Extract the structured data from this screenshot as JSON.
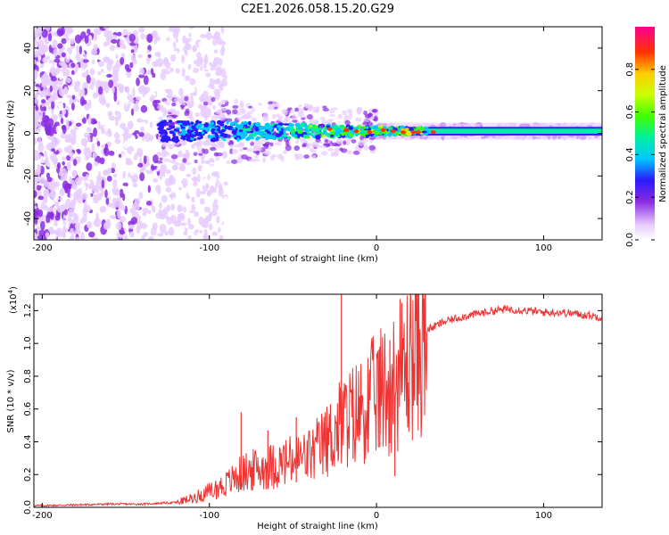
{
  "title": "C2E1.2026.058.15.20.G29",
  "chart_data": [
    {
      "type": "heatmap",
      "name": "spectrogram",
      "xlabel": "Height of straight line (km)",
      "ylabel": "Frequency (Hz)",
      "xlim": [
        -205,
        135
      ],
      "ylim": [
        -50,
        50
      ],
      "xticks": [
        -200,
        -100,
        0,
        100
      ],
      "yticks": [
        -40,
        -20,
        0,
        20,
        40
      ],
      "colorbar": {
        "label": "Normalized spectral amplitude",
        "range": [
          0,
          1
        ],
        "ticks": [
          0.0,
          0.2,
          0.4,
          0.6,
          0.8
        ]
      },
      "description_values": {
        "line_center_hz": 1,
        "noise_region_km": [
          -205,
          -120
        ],
        "peak_amplitude_region_km": [
          -30,
          30
        ]
      }
    },
    {
      "type": "line",
      "name": "snr",
      "xlabel": "Height of straight line (km)",
      "ylabel": "SNR (10 * v/v)",
      "yscale_label": "(x10",
      "yscale_exp": "4",
      "yscale_close": ")",
      "xlim": [
        -205,
        135
      ],
      "ylim": [
        0,
        1.3
      ],
      "xticks": [
        -200,
        -100,
        0,
        100
      ],
      "yticks": [
        0.0,
        0.2,
        0.4,
        0.6,
        0.8,
        1.0,
        1.2
      ],
      "color": "#ee3333",
      "x": [
        -205,
        -180,
        -160,
        -140,
        -130,
        -120,
        -110,
        -100,
        -90,
        -80,
        -70,
        -60,
        -50,
        -40,
        -30,
        -20,
        -10,
        0,
        10,
        20,
        30,
        40,
        50,
        60,
        70,
        80,
        90,
        100,
        110,
        120,
        135
      ],
      "y": [
        0.01,
        0.015,
        0.02,
        0.02,
        0.025,
        0.03,
        0.06,
        0.1,
        0.15,
        0.22,
        0.25,
        0.27,
        0.3,
        0.33,
        0.42,
        0.55,
        0.62,
        0.72,
        0.8,
        0.95,
        1.08,
        1.13,
        1.16,
        1.18,
        1.2,
        1.21,
        1.2,
        1.19,
        1.19,
        1.18,
        1.16
      ],
      "spikes": [
        {
          "x": -81,
          "y": 0.58
        },
        {
          "x": -65,
          "y": 0.47
        },
        {
          "x": -48,
          "y": 0.55
        },
        {
          "x": -21,
          "y": 1.3
        },
        {
          "x": -14,
          "y": 0.72
        },
        {
          "x": -5,
          "y": 0.82
        },
        {
          "x": 2,
          "y": 0.98
        },
        {
          "x": 8,
          "y": 1.02
        },
        {
          "x": 11,
          "y": 0.19
        }
      ]
    }
  ]
}
